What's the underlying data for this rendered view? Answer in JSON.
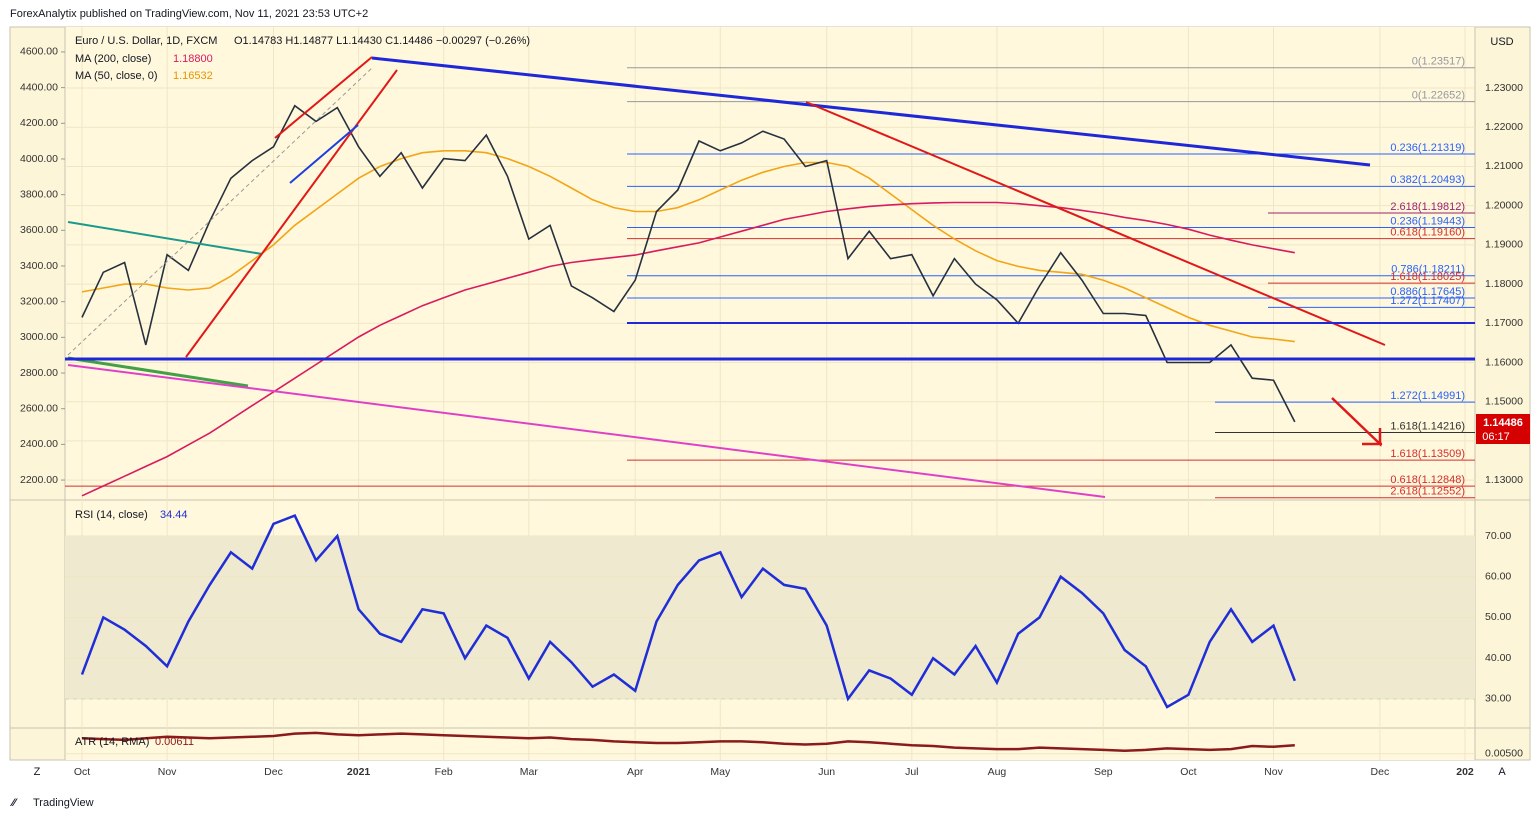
{
  "header": {
    "text": "ForexAnalytix published on TradingView.com, Nov 11, 2021 23:53 UTC+2"
  },
  "footer": {
    "brand": "TradingView"
  },
  "toolbar": {
    "left": "Z",
    "right": "A"
  },
  "chart_data": [
    {
      "type": "line",
      "y_unit": "USD",
      "ohlc": "O1.14783  H1.14877  L1.14430  C1.14486  −0.00297 (−0.26%)",
      "last_price_label": "1.14486",
      "countdown": "06:17",
      "categories": [
        "Oct",
        null,
        null,
        null,
        "Nov",
        null,
        null,
        null,
        null,
        "Dec",
        null,
        null,
        null,
        "2021",
        null,
        null,
        null,
        "Feb",
        null,
        null,
        null,
        "Mar",
        null,
        null,
        null,
        null,
        "Apr",
        null,
        null,
        null,
        "May",
        null,
        null,
        null,
        null,
        "Jun",
        null,
        null,
        null,
        "Jul",
        null,
        null,
        null,
        "Aug",
        null,
        null,
        null,
        null,
        "Sep",
        null,
        null,
        null,
        "Oct",
        null,
        null,
        null,
        "Nov",
        null,
        null,
        null,
        null,
        "Dec",
        null,
        null,
        null,
        "202"
      ],
      "series": [
        {
          "name": "Euro / U.S. Dollar, 1D, FXCM",
          "color": "#26313f",
          "values": [
            1.1715,
            1.183,
            1.1855,
            1.1645,
            1.1875,
            1.1835,
            1.196,
            1.207,
            1.2115,
            1.215,
            1.2255,
            1.2215,
            1.225,
            1.215,
            1.2075,
            1.2135,
            1.2045,
            1.212,
            1.2115,
            1.218,
            1.2075,
            1.1915,
            1.195,
            1.1795,
            1.1765,
            1.173,
            1.181,
            1.1985,
            1.204,
            1.2165,
            1.214,
            1.216,
            1.219,
            1.217,
            1.21,
            1.2115,
            1.1865,
            1.1935,
            1.1865,
            1.1875,
            1.177,
            1.1865,
            1.18,
            1.176,
            1.17,
            1.1795,
            1.188,
            1.181,
            1.1725,
            1.1725,
            1.172,
            1.16,
            1.16,
            1.16,
            1.1645,
            1.156,
            1.1555,
            1.14486,
            null,
            null,
            null,
            null,
            null,
            null,
            null,
            null
          ]
        },
        {
          "name": "MA (200, close)",
          "color": "#d81b60",
          "last_label": "1.18800",
          "values": [
            1.126,
            1.1285,
            1.131,
            1.1335,
            1.136,
            1.139,
            1.142,
            1.1455,
            1.149,
            1.1525,
            1.156,
            1.1595,
            1.163,
            1.1665,
            1.1695,
            1.172,
            1.1745,
            1.1765,
            1.1785,
            1.18,
            1.1815,
            1.183,
            1.1845,
            1.1855,
            1.1862,
            1.1868,
            1.1874,
            1.1885,
            1.1895,
            1.1905,
            1.192,
            1.1935,
            1.195,
            1.1965,
            1.1975,
            1.1985,
            1.1992,
            1.1998,
            1.2002,
            1.2005,
            1.2007,
            1.2008,
            1.2008,
            1.2008,
            1.2005,
            1.2,
            1.1995,
            1.1988,
            1.198,
            1.197,
            1.1962,
            1.1952,
            1.194,
            1.1925,
            1.1912,
            1.19,
            1.189,
            1.188,
            null,
            null,
            null,
            null,
            null,
            null,
            null,
            null
          ]
        },
        {
          "name": "MA (50, close, 0)",
          "color": "#f2a516",
          "last_label": "1.16532",
          "values": [
            1.178,
            1.179,
            1.18,
            1.18,
            1.179,
            1.1785,
            1.179,
            1.182,
            1.186,
            1.19,
            1.195,
            1.199,
            1.203,
            1.207,
            1.21,
            1.212,
            1.2135,
            1.214,
            1.214,
            1.2135,
            1.212,
            1.21,
            1.2075,
            1.2045,
            1.2015,
            1.1995,
            1.1985,
            1.1985,
            1.1995,
            1.2015,
            1.204,
            1.2065,
            1.2085,
            1.21,
            1.211,
            1.211,
            1.21,
            1.207,
            1.203,
            1.199,
            1.195,
            1.1915,
            1.1885,
            1.186,
            1.1845,
            1.1835,
            1.183,
            1.1825,
            1.181,
            1.179,
            1.1765,
            1.174,
            1.1715,
            1.1695,
            1.168,
            1.1665,
            1.166,
            1.16532,
            null,
            null,
            null,
            null,
            null,
            null,
            null,
            null
          ]
        }
      ],
      "ylim": [
        1.1257,
        1.2448
      ],
      "yticks": [
        {
          "value": 1.13,
          "label": "1.13000"
        },
        {
          "value": 1.14,
          "label": "1.14000"
        },
        {
          "value": 1.15,
          "label": "1.15000"
        },
        {
          "value": 1.16,
          "label": "1.16000"
        },
        {
          "value": 1.17,
          "label": "1.17000"
        },
        {
          "value": 1.18,
          "label": "1.18000"
        },
        {
          "value": 1.19,
          "label": "1.19000"
        },
        {
          "value": 1.2,
          "label": "1.20000"
        },
        {
          "value": 1.21,
          "label": "1.21000"
        },
        {
          "value": 1.22,
          "label": "1.22000"
        },
        {
          "value": 1.23,
          "label": "1.23000"
        }
      ],
      "y2lim": [
        2105,
        4723
      ],
      "y2ticks": [
        {
          "value": 2200,
          "label": "2200.00"
        },
        {
          "value": 2400,
          "label": "2400.00"
        },
        {
          "value": 2600,
          "label": "2600.00"
        },
        {
          "value": 2800,
          "label": "2800.00"
        },
        {
          "value": 3000,
          "label": "3000.00"
        },
        {
          "value": 3200,
          "label": "3200.00"
        },
        {
          "value": 3400,
          "label": "3400.00"
        },
        {
          "value": 3600,
          "label": "3600.00"
        },
        {
          "value": 3800,
          "label": "3800.00"
        },
        {
          "value": 4000,
          "label": "4000.00"
        },
        {
          "value": 4200,
          "label": "4200.00"
        },
        {
          "value": 4400,
          "label": "4400.00"
        },
        {
          "value": 4600,
          "label": "4600.00"
        }
      ],
      "levels": [
        {
          "label": "0(1.23517)",
          "value": 1.23517,
          "color": "#9598a1"
        },
        {
          "label": "0(1.22652)",
          "value": 1.22652,
          "color": "#9598a1"
        },
        {
          "label": "0.236(1.21319)",
          "value": 1.21319,
          "color": "#2962ff"
        },
        {
          "label": "0.382(1.20493)",
          "value": 1.20493,
          "color": "#2962ff"
        },
        {
          "label": "2.618(1.19812)",
          "value": 1.19812,
          "color": "#9c1f6e"
        },
        {
          "label": "0.236(1.19443)",
          "value": 1.19443,
          "color": "#2962ff"
        },
        {
          "label": "0.618(1.19160)",
          "value": 1.1916,
          "color": "#d32f2f"
        },
        {
          "label": "0.786(1.18211)",
          "value": 1.18211,
          "color": "#2962ff"
        },
        {
          "label": "1.618(1.18025)",
          "value": 1.18025,
          "color": "#d32f2f"
        },
        {
          "label": "0.886(1.17645)",
          "value": 1.17645,
          "color": "#2962ff"
        },
        {
          "label": "1.272(1.17407)",
          "value": 1.17407,
          "color": "#2962ff"
        },
        {
          "label": "1.272(1.14991)",
          "value": 1.14991,
          "color": "#2962ff"
        },
        {
          "label": "1.618(1.14216)",
          "value": 1.14216,
          "color": "#333333"
        },
        {
          "label": "1.618(1.13509)",
          "value": 1.13509,
          "color": "#d32f2f"
        },
        {
          "label": "0.618(1.12848)",
          "value": 1.12848,
          "color": "#d32f2f"
        },
        {
          "label": "2.618(1.12552)",
          "value": 1.12552,
          "color": "#d32f2f"
        }
      ]
    },
    {
      "type": "line",
      "series": [
        {
          "name": "RSI (14, close)",
          "color": "#1f2ed6",
          "last_label": "34.44",
          "values": [
            36,
            50,
            47,
            43,
            38,
            49,
            58,
            66,
            62,
            73,
            75,
            64,
            70,
            52,
            46,
            44,
            52,
            51,
            40,
            48,
            45,
            35,
            44,
            39,
            33,
            36,
            32,
            49,
            58,
            64,
            66,
            55,
            62,
            58,
            57,
            48,
            30,
            37,
            35,
            31,
            40,
            36,
            43,
            34,
            46,
            50,
            60,
            56,
            51,
            42,
            38,
            28,
            31,
            44,
            52,
            44,
            48,
            34.44,
            null,
            null,
            null,
            null,
            null,
            null,
            null,
            null
          ]
        }
      ],
      "ylim": [
        23.1,
        78.1
      ],
      "yticks": [
        {
          "value": 30,
          "label": "30.00"
        },
        {
          "value": 40,
          "label": "40.00"
        },
        {
          "value": 50,
          "label": "50.00"
        },
        {
          "value": 60,
          "label": "60.00"
        },
        {
          "value": 70,
          "label": "70.00"
        }
      ],
      "overbought": 70,
      "oversold": 30
    },
    {
      "type": "line",
      "series": [
        {
          "name": "ATR (14, RMA)",
          "color": "#8b1a1a",
          "last_label": "0.00611",
          "values": [
            0.007,
            0.0069,
            0.0068,
            0.007,
            0.0072,
            0.0071,
            0.007,
            0.0071,
            0.0072,
            0.0073,
            0.0076,
            0.0077,
            0.0075,
            0.0074,
            0.0075,
            0.0076,
            0.0075,
            0.0074,
            0.0073,
            0.0072,
            0.0071,
            0.007,
            0.0071,
            0.0069,
            0.0068,
            0.0066,
            0.0065,
            0.0064,
            0.0064,
            0.0065,
            0.0066,
            0.0066,
            0.0065,
            0.0063,
            0.0062,
            0.0063,
            0.0066,
            0.0065,
            0.0063,
            0.0061,
            0.006,
            0.0058,
            0.0057,
            0.0056,
            0.0056,
            0.0058,
            0.0057,
            0.0056,
            0.0055,
            0.0054,
            0.0055,
            0.0057,
            0.0056,
            0.0055,
            0.0056,
            0.006,
            0.0059,
            0.00611,
            null,
            null,
            null,
            null,
            null,
            null,
            null,
            null
          ]
        }
      ],
      "ylim": [
        0.0042,
        0.0082
      ],
      "yticks": [
        {
          "value": 0.005,
          "label": "0.00500"
        }
      ]
    }
  ]
}
